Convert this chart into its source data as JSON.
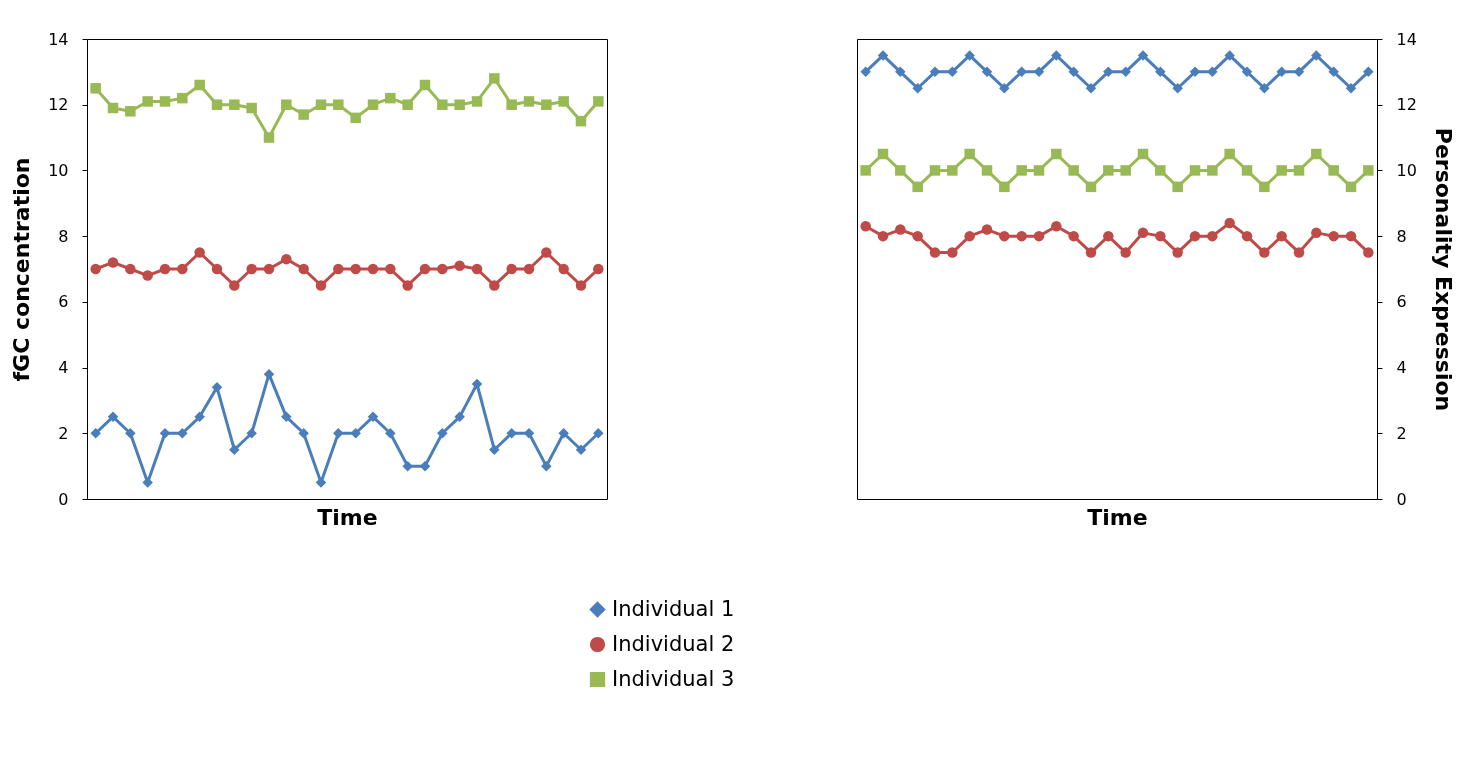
{
  "chart_data": [
    {
      "type": "line",
      "xlabel": "Time",
      "ylabel": "fGC concentration",
      "categories": [
        null,
        null,
        null,
        null,
        null,
        null,
        null,
        null,
        null,
        null,
        null,
        null,
        null,
        null,
        null,
        null,
        null,
        null,
        null,
        null,
        null,
        null,
        null,
        null,
        null,
        null,
        null,
        null,
        null,
        null
      ],
      "ylim": [
        0,
        14
      ],
      "yticks": [
        0,
        2,
        4,
        6,
        8,
        10,
        12,
        14
      ],
      "grid": false,
      "legend": "bottom",
      "series": [
        {
          "name": "Individual 1",
          "color": "#4a7ebb",
          "marker": "diamond",
          "values": [
            2,
            2.5,
            2,
            0.5,
            2,
            2,
            2.5,
            3.4,
            1.5,
            2,
            3.8,
            2.5,
            2,
            0.5,
            2,
            2,
            2.5,
            2,
            1,
            1,
            2,
            2.5,
            3.5,
            1.5,
            2,
            2,
            1,
            2,
            1.5,
            2
          ]
        },
        {
          "name": "Individual 2",
          "color": "#be4b48",
          "marker": "circle",
          "values": [
            7,
            7.2,
            7,
            6.8,
            7,
            7,
            7.5,
            7,
            6.5,
            7,
            7,
            7.3,
            7,
            6.5,
            7,
            7,
            7,
            7,
            6.5,
            7,
            7,
            7.1,
            7,
            6.5,
            7,
            7,
            7.5,
            7,
            6.5,
            7
          ]
        },
        {
          "name": "Individual 3",
          "color": "#98b954",
          "marker": "square",
          "values": [
            12.5,
            11.9,
            11.8,
            12.1,
            12.1,
            12.2,
            12.6,
            12,
            12,
            11.9,
            11,
            12,
            11.7,
            12,
            12,
            11.6,
            12,
            12.2,
            12,
            12.6,
            12,
            12,
            12.1,
            12.8,
            12,
            12.1,
            12,
            12.1,
            11.5,
            12.1
          ]
        }
      ]
    },
    {
      "type": "line",
      "xlabel": "Time",
      "ylabel": "Personality Expression",
      "categories": [
        null,
        null,
        null,
        null,
        null,
        null,
        null,
        null,
        null,
        null,
        null,
        null,
        null,
        null,
        null,
        null,
        null,
        null,
        null,
        null,
        null,
        null,
        null,
        null,
        null,
        null,
        null,
        null,
        null,
        null
      ],
      "ylim": [
        0,
        14
      ],
      "yticks": [
        0,
        2,
        4,
        6,
        8,
        10,
        12,
        14
      ],
      "grid": false,
      "legend": false,
      "series": [
        {
          "color": "#4a7ebb",
          "marker": "diamond",
          "values": [
            13,
            13.5,
            13,
            12.5,
            13,
            13,
            13.5,
            13,
            12.5,
            13,
            13,
            13.5,
            13,
            12.5,
            13,
            13,
            13.5,
            13,
            12.5,
            13,
            13,
            13.5,
            13,
            12.5,
            13,
            13,
            13.5,
            13,
            12.5,
            13
          ]
        },
        {
          "color": "#be4b48",
          "marker": "circle",
          "values": [
            8.3,
            8,
            8.2,
            8,
            7.5,
            7.5,
            8,
            8.2,
            8,
            8,
            8,
            8.3,
            8,
            7.5,
            8,
            7.5,
            8.1,
            8,
            7.5,
            8,
            8,
            8.4,
            8,
            7.5,
            8,
            7.5,
            8.1,
            8,
            8,
            7.5
          ]
        },
        {
          "color": "#98b954",
          "marker": "square",
          "values": [
            10,
            10.5,
            10,
            9.5,
            10,
            10,
            10.5,
            10,
            9.5,
            10,
            10,
            10.5,
            10,
            9.5,
            10,
            10,
            10.5,
            10,
            9.5,
            10,
            10,
            10.5,
            10,
            9.5,
            10,
            10,
            10.5,
            10,
            9.5,
            10
          ]
        }
      ]
    }
  ]
}
